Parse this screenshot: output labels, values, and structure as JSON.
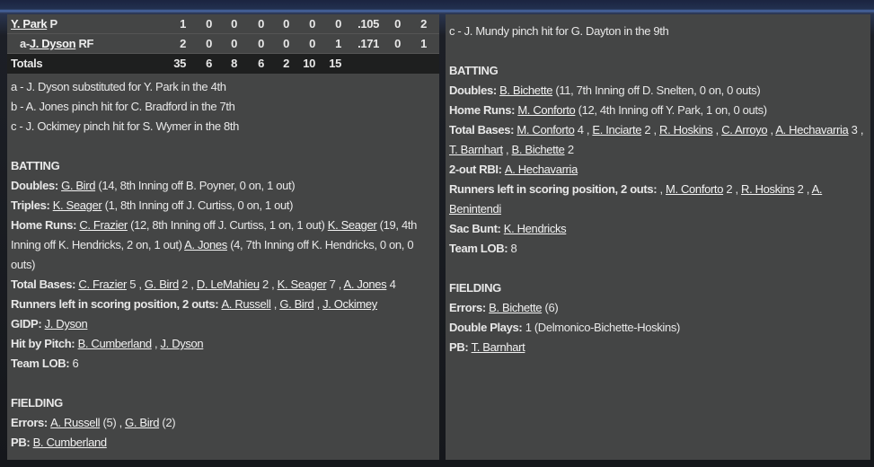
{
  "left": {
    "table": {
      "rows": [
        {
          "name": "Y. Park",
          "pos": " P",
          "indent": "",
          "values": [
            "1",
            "0",
            "0",
            "0",
            "0",
            "0",
            "0",
            ".105",
            "0",
            "2"
          ]
        },
        {
          "name": "J. Dyson",
          "pos": " RF",
          "indent": "a-",
          "values": [
            "2",
            "0",
            "0",
            "0",
            "0",
            "0",
            "1",
            ".171",
            "0",
            "1"
          ]
        }
      ],
      "totals": {
        "label": "Totals",
        "values": [
          "35",
          "6",
          "8",
          "6",
          "2",
          "10",
          "15"
        ]
      }
    },
    "lines": [
      [
        {
          "t": "a - J. Dyson substituted for Y. Park in the 4th"
        }
      ],
      [
        {
          "t": "b - A. Jones pinch hit for C. Bradford in the 7th"
        }
      ],
      [
        {
          "t": "c - J. Ockimey pinch hit for S. Wymer in the 8th"
        }
      ],
      [],
      [
        {
          "t": "BATTING",
          "b": 1
        }
      ],
      [
        {
          "t": "Doubles: ",
          "b": 1
        },
        {
          "t": "G. Bird",
          "l": 1
        },
        {
          "t": " (14, 8th Inning off B. Poyner, 0 on, 1 out)"
        }
      ],
      [
        {
          "t": "Triples: ",
          "b": 1
        },
        {
          "t": "K. Seager",
          "l": 1
        },
        {
          "t": " (1, 8th Inning off J. Curtiss, 0 on, 1 out)"
        }
      ],
      [
        {
          "t": "Home Runs: ",
          "b": 1
        },
        {
          "t": "C. Frazier",
          "l": 1
        },
        {
          "t": " (12, 8th Inning off J. Curtiss, 1 on, 1 out) "
        },
        {
          "t": "K. Seager",
          "l": 1
        },
        {
          "t": " (19, 4th Inning off K. Hendricks, 2 on, 1 out) "
        },
        {
          "t": "A. Jones",
          "l": 1
        },
        {
          "t": " (4, 7th Inning off K. Hendricks, 0 on, 0 outs)"
        }
      ],
      [
        {
          "t": "Total Bases: ",
          "b": 1
        },
        {
          "t": "C. Frazier",
          "l": 1
        },
        {
          "t": " 5 , "
        },
        {
          "t": "G. Bird",
          "l": 1
        },
        {
          "t": " 2 , "
        },
        {
          "t": "D. LeMahieu",
          "l": 1
        },
        {
          "t": " 2 , "
        },
        {
          "t": "K. Seager",
          "l": 1
        },
        {
          "t": " 7 , "
        },
        {
          "t": "A. Jones",
          "l": 1
        },
        {
          "t": " 4"
        }
      ],
      [
        {
          "t": "Runners left in scoring position, 2 outs: ",
          "b": 1
        },
        {
          "t": "A. Russell",
          "l": 1
        },
        {
          "t": " , "
        },
        {
          "t": "G. Bird",
          "l": 1
        },
        {
          "t": " , "
        },
        {
          "t": "J. Ockimey",
          "l": 1
        }
      ],
      [
        {
          "t": "GIDP: ",
          "b": 1
        },
        {
          "t": "J. Dyson",
          "l": 1
        }
      ],
      [
        {
          "t": "Hit by Pitch: ",
          "b": 1
        },
        {
          "t": "B. Cumberland",
          "l": 1
        },
        {
          "t": " , "
        },
        {
          "t": "J. Dyson",
          "l": 1
        }
      ],
      [
        {
          "t": "Team LOB: ",
          "b": 1
        },
        {
          "t": " 6"
        }
      ],
      [],
      [
        {
          "t": "FIELDING",
          "b": 1
        }
      ],
      [
        {
          "t": "Errors: ",
          "b": 1
        },
        {
          "t": "A. Russell",
          "l": 1
        },
        {
          "t": " (5) , "
        },
        {
          "t": "G. Bird",
          "l": 1
        },
        {
          "t": " (2)"
        }
      ],
      [
        {
          "t": "PB: ",
          "b": 1
        },
        {
          "t": "B. Cumberland",
          "l": 1
        }
      ]
    ]
  },
  "right": {
    "lines": [
      [
        {
          "t": "c - J. Mundy pinch hit for G. Dayton in the 9th"
        }
      ],
      [],
      [
        {
          "t": "BATTING",
          "b": 1
        }
      ],
      [
        {
          "t": "Doubles: ",
          "b": 1
        },
        {
          "t": "B. Bichette",
          "l": 1
        },
        {
          "t": " (11, 7th Inning off D. Snelten, 0 on, 0 outs)"
        }
      ],
      [
        {
          "t": "Home Runs: ",
          "b": 1
        },
        {
          "t": "M. Conforto",
          "l": 1
        },
        {
          "t": " (12, 4th Inning off Y. Park, 1 on, 0 outs)"
        }
      ],
      [
        {
          "t": "Total Bases: ",
          "b": 1
        },
        {
          "t": "M. Conforto",
          "l": 1
        },
        {
          "t": " 4 , "
        },
        {
          "t": "E. Inciarte",
          "l": 1
        },
        {
          "t": " 2 , "
        },
        {
          "t": "R. Hoskins",
          "l": 1
        },
        {
          "t": " , "
        },
        {
          "t": "C. Arroyo",
          "l": 1
        },
        {
          "t": " , "
        },
        {
          "t": "A. Hechavarria",
          "l": 1
        },
        {
          "t": " 3 , "
        },
        {
          "t": "T. Barnhart",
          "l": 1
        },
        {
          "t": " , "
        },
        {
          "t": "B. Bichette",
          "l": 1
        },
        {
          "t": " 2"
        }
      ],
      [
        {
          "t": "2-out RBI: ",
          "b": 1
        },
        {
          "t": "A. Hechavarria",
          "l": 1
        }
      ],
      [
        {
          "t": "Runners left in scoring position, 2 outs: ",
          "b": 1
        },
        {
          "t": " , "
        },
        {
          "t": "M. Conforto",
          "l": 1
        },
        {
          "t": " 2 , "
        },
        {
          "t": "R. Hoskins",
          "l": 1
        },
        {
          "t": " 2 , "
        },
        {
          "t": "A. Benintendi",
          "l": 1
        }
      ],
      [
        {
          "t": "Sac Bunt: ",
          "b": 1
        },
        {
          "t": "K. Hendricks",
          "l": 1
        }
      ],
      [
        {
          "t": "Team LOB: ",
          "b": 1
        },
        {
          "t": " 8"
        }
      ],
      [],
      [
        {
          "t": "FIELDING",
          "b": 1
        }
      ],
      [
        {
          "t": "Errors: ",
          "b": 1
        },
        {
          "t": "B. Bichette",
          "l": 1
        },
        {
          "t": " (6)"
        }
      ],
      [
        {
          "t": "Double Plays: ",
          "b": 1
        },
        {
          "t": " 1 (Delmonico-Bichette-Hoskins)"
        }
      ],
      [
        {
          "t": "PB: ",
          "b": 1
        },
        {
          "t": "T. Barnhart",
          "l": 1
        }
      ]
    ]
  }
}
